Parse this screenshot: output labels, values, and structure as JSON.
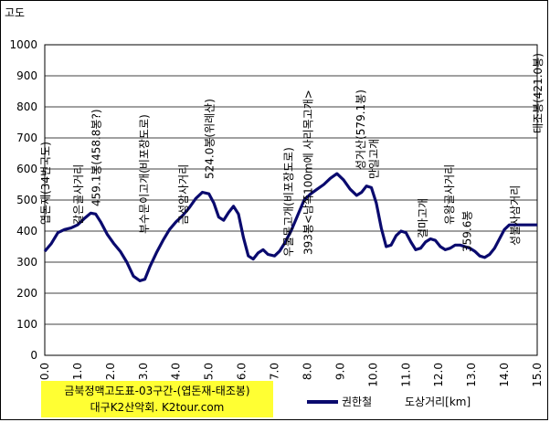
{
  "chart_data": {
    "type": "line",
    "title": "",
    "ylabel": "고도",
    "xlabel": "도상거리[km]",
    "xlim": [
      0,
      15
    ],
    "ylim": [
      0,
      1000
    ],
    "x_ticks": [
      "0.0",
      "1.0",
      "2.0",
      "3.0",
      "4.0",
      "5.0",
      "6.0",
      "7.0",
      "8.0",
      "9.0",
      "10.0",
      "11.0",
      "12.0",
      "13.0",
      "14.0",
      "15.0"
    ],
    "y_ticks": [
      "0",
      "100",
      "200",
      "300",
      "400",
      "500",
      "600",
      "700",
      "800",
      "900",
      "1000"
    ],
    "grid": true,
    "legend_position": "bottom",
    "series": [
      {
        "name": "권한철",
        "color": "#0a0a6e",
        "x": [
          0,
          0.2,
          0.4,
          0.6,
          0.8,
          1.0,
          1.2,
          1.4,
          1.55,
          1.7,
          1.9,
          2.1,
          2.3,
          2.5,
          2.7,
          2.9,
          3.05,
          3.2,
          3.4,
          3.6,
          3.8,
          4.0,
          4.2,
          4.4,
          4.6,
          4.8,
          5.0,
          5.15,
          5.3,
          5.45,
          5.6,
          5.75,
          5.9,
          6.05,
          6.2,
          6.35,
          6.5,
          6.65,
          6.8,
          7.0,
          7.15,
          7.3,
          7.5,
          7.7,
          7.9,
          8.1,
          8.3,
          8.5,
          8.7,
          8.9,
          9.1,
          9.3,
          9.5,
          9.65,
          9.8,
          9.95,
          10.1,
          10.25,
          10.4,
          10.55,
          10.7,
          10.85,
          11.0,
          11.15,
          11.3,
          11.45,
          11.6,
          11.75,
          11.9,
          12.05,
          12.2,
          12.35,
          12.5,
          12.65,
          12.8,
          12.95,
          13.1,
          13.25,
          13.4,
          13.55,
          13.7,
          13.85,
          14.0,
          14.15,
          14.3,
          14.45,
          14.6,
          14.75,
          14.9,
          15.0
        ],
        "values": [
          335,
          360,
          395,
          405,
          410,
          420,
          440,
          458,
          455,
          430,
          390,
          360,
          335,
          300,
          255,
          240,
          245,
          285,
          330,
          370,
          405,
          430,
          450,
          475,
          505,
          525,
          520,
          490,
          445,
          435,
          460,
          480,
          455,
          380,
          320,
          310,
          330,
          340,
          325,
          320,
          335,
          360,
          400,
          450,
          500,
          520,
          535,
          550,
          570,
          585,
          565,
          535,
          515,
          525,
          545,
          540,
          490,
          410,
          350,
          355,
          385,
          400,
          395,
          365,
          340,
          345,
          365,
          375,
          370,
          350,
          340,
          345,
          355,
          355,
          350,
          345,
          335,
          320,
          315,
          325,
          345,
          375,
          405,
          420,
          420,
          420,
          420,
          420,
          420,
          420
        ],
        "annotations_note": ""
      }
    ],
    "annotations": [
      {
        "text": "엽돈재(34번국도)",
        "x": 0.0
      },
      {
        "text": "갈은골사거리",
        "x": 1.0
      },
      {
        "text": "459.1봉(458.8봉?)",
        "x": 1.55
      },
      {
        "text": "부수문이고개(비포장도로)",
        "x": 3.0
      },
      {
        "text": "금성암사거리",
        "x": 4.2
      },
      {
        "text": "524.0봉(위례산)",
        "x": 5.0
      },
      {
        "text": "우물목고개(비포장도로)",
        "x": 7.4
      },
      {
        "text": "393봉<남쪽100m에 사리목고개>",
        "x": 8.0
      },
      {
        "text": "성거산(579.1봉)",
        "x": 9.6
      },
      {
        "text": "만일고개",
        "x": 10.0
      },
      {
        "text": "걸마고개",
        "x": 11.5
      },
      {
        "text": "유왕골사거리",
        "x": 12.3
      },
      {
        "text": "359.6봉",
        "x": 12.85
      },
      {
        "text": "성불사삼거리",
        "x": 14.3
      },
      {
        "text": "태조봉(421.0봉)",
        "x": 15.0
      }
    ]
  },
  "source_lines": [
    "금북정맥고도표-03구간-(엽돈재-태조봉)",
    "대구K2산악회. K2tour.com"
  ]
}
